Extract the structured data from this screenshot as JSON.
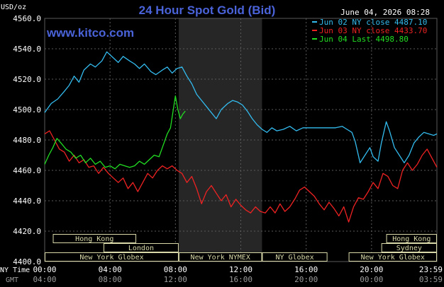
{
  "header": {
    "title": "24 Hour Spot Gold (Bid)",
    "unit": "USD/oz",
    "datetime": "June 04, 2026 08:28",
    "site": "www.kitco.com"
  },
  "colors": {
    "background": "#000000",
    "title": "#4a63d9",
    "site": "#4a63d9",
    "grid": "#5a5a5a",
    "band": "#262626",
    "axis_text": "#ffffff",
    "gmt_text": "#9a9a9a",
    "bar_fill": "#000000",
    "bar_stroke": "#d8d8a8",
    "bar_text": "#d8d8a8"
  },
  "chart_data": {
    "type": "line",
    "ylim": [
      4400,
      4560
    ],
    "yticks": [
      "4560.0",
      "4540.0",
      "4520.0",
      "4500.0",
      "4480.0",
      "4460.0",
      "4440.0",
      "4420.0",
      "4400.0"
    ],
    "xlim": [
      0,
      24
    ],
    "x_row_label": "NY Time",
    "gmt_row_label": "GMT",
    "xticks": [
      {
        "h": 0,
        "ny": "00:00",
        "gmt": "04:00"
      },
      {
        "h": 4,
        "ny": "04:00",
        "gmt": "08:00"
      },
      {
        "h": 8,
        "ny": "08:00",
        "gmt": "12:00"
      },
      {
        "h": 12,
        "ny": "12:00",
        "gmt": "16:00"
      },
      {
        "h": 16,
        "ny": "16:00",
        "gmt": "20:00"
      },
      {
        "h": 20,
        "ny": "20:00",
        "gmt": "00:00"
      },
      {
        "h": 24,
        "ny": "23:59",
        "gmt": "03:59"
      }
    ],
    "shaded_band": [
      8.2,
      13.3
    ],
    "series": [
      {
        "name": "Jun 02 NY close",
        "value": "4487.10",
        "color": "#33bbee",
        "x": [
          0,
          0.4,
          0.8,
          1.2,
          1.5,
          1.8,
          2.1,
          2.4,
          2.8,
          3.1,
          3.5,
          3.8,
          4.2,
          4.5,
          4.8,
          5.2,
          5.5,
          5.8,
          6.1,
          6.5,
          6.8,
          7.2,
          7.5,
          7.8,
          8.1,
          8.4,
          8.7,
          9.0,
          9.3,
          9.6,
          9.9,
          10.2,
          10.5,
          10.8,
          11.2,
          11.5,
          11.8,
          12.1,
          12.4,
          12.7,
          13.0,
          13.3,
          13.6,
          13.9,
          14.2,
          14.6,
          15.0,
          15.4,
          15.8,
          16.2,
          16.6,
          17.0,
          17.4,
          17.8,
          18.2,
          18.5,
          18.8,
          19.0,
          19.3,
          19.6,
          19.9,
          20.1,
          20.4,
          20.6,
          20.9,
          21.1,
          21.4,
          21.7,
          22.0,
          22.3,
          22.6,
          22.9,
          23.2,
          23.5,
          23.8,
          24
        ],
        "values": [
          4498,
          4504,
          4507,
          4512,
          4516,
          4522,
          4518,
          4526,
          4530,
          4528,
          4532,
          4538,
          4534,
          4531,
          4535,
          4532,
          4530,
          4527,
          4530,
          4525,
          4523,
          4526,
          4528,
          4524,
          4527,
          4528,
          4522,
          4517,
          4510,
          4506,
          4502,
          4498,
          4494,
          4500,
          4504,
          4506,
          4505,
          4503,
          4499,
          4494,
          4490,
          4487,
          4485,
          4488,
          4486,
          4487,
          4489,
          4486,
          4488,
          4488,
          4488,
          4488,
          4488,
          4488,
          4489,
          4487,
          4485,
          4479,
          4465,
          4470,
          4475,
          4469,
          4466,
          4478,
          4492,
          4486,
          4475,
          4470,
          4465,
          4470,
          4478,
          4482,
          4485,
          4484,
          4483,
          4484
        ]
      },
      {
        "name": "Jun 03 NY close",
        "value": "4433.70",
        "color": "#ee2222",
        "x": [
          0,
          0.3,
          0.6,
          0.9,
          1.2,
          1.5,
          1.8,
          2.1,
          2.4,
          2.7,
          3.0,
          3.3,
          3.6,
          3.9,
          4.2,
          4.5,
          4.8,
          5.1,
          5.4,
          5.7,
          6.0,
          6.3,
          6.6,
          6.9,
          7.2,
          7.5,
          7.8,
          8.1,
          8.4,
          8.7,
          9.0,
          9.3,
          9.6,
          9.9,
          10.2,
          10.5,
          10.8,
          11.1,
          11.4,
          11.7,
          12.0,
          12.3,
          12.6,
          12.9,
          13.2,
          13.5,
          13.8,
          14.1,
          14.4,
          14.7,
          15.0,
          15.3,
          15.6,
          15.9,
          16.2,
          16.5,
          16.8,
          17.1,
          17.4,
          17.7,
          18.0,
          18.3,
          18.6,
          18.9,
          19.2,
          19.5,
          19.8,
          20.1,
          20.4,
          20.7,
          21.0,
          21.3,
          21.6,
          21.9,
          22.2,
          22.5,
          22.8,
          23.1,
          23.4,
          23.7,
          24
        ],
        "values": [
          4484,
          4486,
          4480,
          4474,
          4472,
          4466,
          4470,
          4465,
          4467,
          4462,
          4463,
          4458,
          4462,
          4458,
          4455,
          4452,
          4455,
          4448,
          4452,
          4446,
          4452,
          4458,
          4455,
          4460,
          4463,
          4461,
          4463,
          4460,
          4458,
          4452,
          4456,
          4448,
          4438,
          4446,
          4450,
          4445,
          4440,
          4444,
          4436,
          4441,
          4437,
          4434,
          4432,
          4436,
          4433,
          4432,
          4436,
          4432,
          4438,
          4433,
          4436,
          4441,
          4447,
          4449,
          4446,
          4443,
          4438,
          4434,
          4439,
          4435,
          4430,
          4436,
          4426,
          4436,
          4442,
          4441,
          4446,
          4452,
          4448,
          4458,
          4456,
          4450,
          4448,
          4460,
          4465,
          4460,
          4464,
          4470,
          4474,
          4468,
          4462
        ]
      },
      {
        "name": "Jun 04 Last",
        "value": "4498.80",
        "color": "#22dd22",
        "x": [
          0,
          0.25,
          0.5,
          0.75,
          1.0,
          1.3,
          1.6,
          1.9,
          2.2,
          2.5,
          2.8,
          3.1,
          3.4,
          3.7,
          4.0,
          4.3,
          4.6,
          4.9,
          5.2,
          5.5,
          5.8,
          6.1,
          6.4,
          6.7,
          7.0,
          7.3,
          7.5,
          7.7,
          7.9,
          8.0,
          8.15,
          8.3,
          8.45,
          8.6
        ],
        "values": [
          4464,
          4470,
          4475,
          4481,
          4478,
          4474,
          4472,
          4468,
          4470,
          4465,
          4468,
          4464,
          4466,
          4462,
          4463,
          4461,
          4464,
          4463,
          4462,
          4463,
          4466,
          4464,
          4467,
          4470,
          4469,
          4478,
          4484,
          4488,
          4502,
          4509,
          4500,
          4494,
          4497,
          4499
        ]
      }
    ],
    "session_rows": [
      [
        {
          "label": "Hong Kong",
          "start": 0.5,
          "end": 5.6
        },
        {
          "label": "Hong Kong",
          "start": 20.9,
          "end": 24
        }
      ],
      [
        {
          "label": "London",
          "start": 3.6,
          "end": 8.2
        },
        {
          "label": "Sydney",
          "start": 20.6,
          "end": 24
        }
      ],
      [
        {
          "label": "New York Globex",
          "start": 0,
          "end": 8.2
        },
        {
          "label": "New York NYMEX",
          "start": 8.2,
          "end": 13.3
        },
        {
          "label": "NY Globex",
          "start": 13.3,
          "end": 17.3
        },
        {
          "label": "New York Globex",
          "start": 18.6,
          "end": 24
        }
      ]
    ]
  }
}
